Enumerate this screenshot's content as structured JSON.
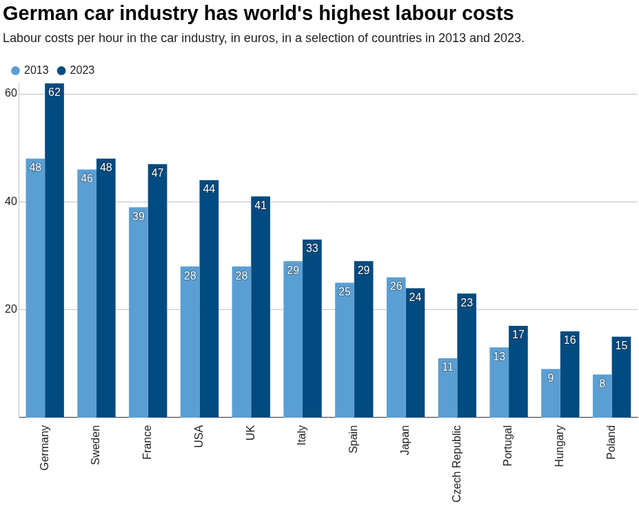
{
  "chart_data": {
    "type": "bar",
    "title": "German car industry has world's highest labour costs",
    "subtitle": "Labour costs per hour in the car industry, in euros, in a selection of countries in 2013 and 2023.",
    "categories": [
      "Germany",
      "Sweden",
      "France",
      "USA",
      "UK",
      "Italy",
      "Spain",
      "Japan",
      "Czech Republic",
      "Portugal",
      "Hungary",
      "Poland"
    ],
    "series": [
      {
        "name": "2013",
        "color": "#5a9fd4",
        "values": [
          48,
          46,
          39,
          28,
          28,
          29,
          25,
          26,
          11,
          13,
          9,
          8
        ]
      },
      {
        "name": "2023",
        "color": "#024b80",
        "values": [
          62,
          48,
          47,
          44,
          41,
          33,
          29,
          24,
          23,
          17,
          16,
          15
        ]
      }
    ],
    "ylim": [
      0,
      62
    ],
    "yticks": [
      20,
      40,
      60
    ],
    "grid": true,
    "legend": "top-left",
    "data_labels": true
  }
}
